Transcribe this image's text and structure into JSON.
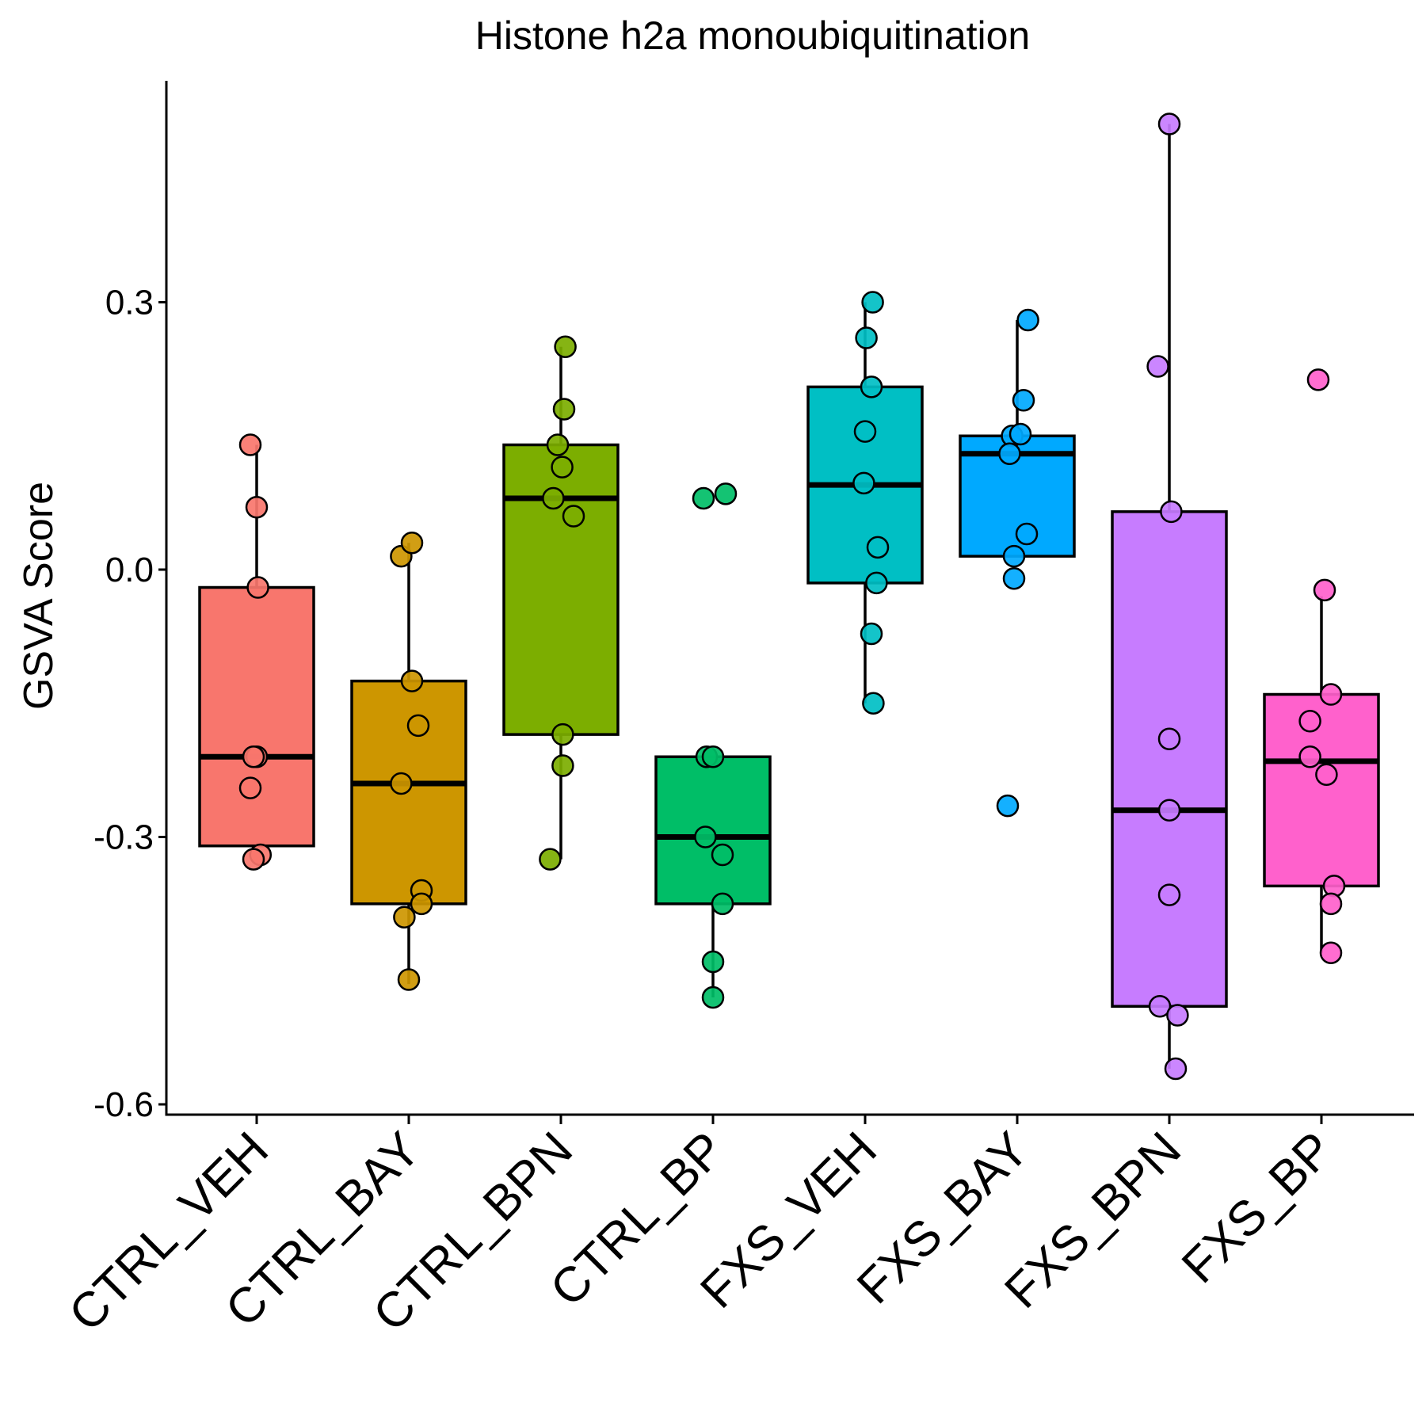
{
  "chart_data": {
    "type": "box",
    "title": "Histone h2a monoubiquitination",
    "xlabel": "",
    "ylabel": "GSVA Score",
    "ylim": [
      -0.62,
      0.55
    ],
    "yticks": [
      0.3,
      0.0,
      -0.3,
      -0.6
    ],
    "ytick_labels": [
      "0.3",
      "0.0",
      "-0.3",
      "-0.6"
    ],
    "grid": false,
    "legend": "none",
    "categories": [
      "CTRL_VEH",
      "CTRL_BAY",
      "CTRL_BPN",
      "CTRL_BP",
      "FXS_VEH",
      "FXS_BAY",
      "FXS_BPN",
      "FXS_BP"
    ],
    "colors": [
      "#F8766D",
      "#CD9600",
      "#7CAE00",
      "#00BE67",
      "#00BFC4",
      "#00A9FF",
      "#C77CFF",
      "#FF61CC"
    ],
    "boxes": [
      {
        "q1": -0.31,
        "median": -0.21,
        "q3": -0.02,
        "whisker_low": -0.31,
        "whisker_high": 0.14
      },
      {
        "q1": -0.375,
        "median": -0.24,
        "q3": -0.125,
        "whisker_low": -0.465,
        "whisker_high": 0.03
      },
      {
        "q1": -0.185,
        "median": 0.08,
        "q3": 0.14,
        "whisker_low": -0.325,
        "whisker_high": 0.25
      },
      {
        "q1": -0.375,
        "median": -0.3,
        "q3": -0.21,
        "whisker_low": -0.48,
        "whisker_high": -0.21
      },
      {
        "q1": -0.015,
        "median": 0.095,
        "q3": 0.205,
        "whisker_low": -0.15,
        "whisker_high": 0.3
      },
      {
        "q1": 0.015,
        "median": 0.13,
        "q3": 0.15,
        "whisker_low": 0.015,
        "whisker_high": 0.28
      },
      {
        "q1": -0.49,
        "median": -0.27,
        "q3": 0.065,
        "whisker_low": -0.56,
        "whisker_high": 0.5
      },
      {
        "q1": -0.355,
        "median": -0.215,
        "q3": -0.14,
        "whisker_low": -0.43,
        "whisker_high": -0.03
      }
    ],
    "points": [
      [
        [
          0.0,
          0.07
        ],
        [
          -0.1,
          0.14
        ],
        [
          0.02,
          -0.02
        ],
        [
          0.0,
          -0.21
        ],
        [
          -0.05,
          -0.21
        ],
        [
          -0.1,
          -0.245
        ],
        [
          0.06,
          -0.32
        ],
        [
          -0.05,
          -0.325
        ]
      ],
      [
        [
          -0.12,
          0.015
        ],
        [
          0.05,
          0.03
        ],
        [
          0.05,
          -0.125
        ],
        [
          0.15,
          -0.175
        ],
        [
          -0.12,
          -0.24
        ],
        [
          0.2,
          -0.36
        ],
        [
          0.2,
          -0.375
        ],
        [
          -0.07,
          -0.39
        ],
        [
          0.0,
          -0.46
        ]
      ],
      [
        [
          0.07,
          0.25
        ],
        [
          0.05,
          0.18
        ],
        [
          -0.05,
          0.14
        ],
        [
          0.02,
          0.115
        ],
        [
          -0.12,
          0.08
        ],
        [
          0.2,
          0.06
        ],
        [
          0.03,
          -0.185
        ],
        [
          0.03,
          -0.22
        ],
        [
          -0.17,
          -0.325
        ]
      ],
      [
        [
          -0.15,
          0.08
        ],
        [
          0.2,
          0.085
        ],
        [
          -0.1,
          -0.21
        ],
        [
          0.0,
          -0.21
        ],
        [
          -0.12,
          -0.3
        ],
        [
          0.15,
          -0.32
        ],
        [
          0.15,
          -0.375
        ],
        [
          0.0,
          -0.44
        ],
        [
          0.0,
          -0.48
        ]
      ],
      [
        [
          0.12,
          0.3
        ],
        [
          0.02,
          0.26
        ],
        [
          0.1,
          0.205
        ],
        [
          0.0,
          0.155
        ],
        [
          -0.02,
          0.097
        ],
        [
          0.2,
          0.025
        ],
        [
          0.18,
          -0.015
        ],
        [
          0.1,
          -0.072
        ],
        [
          0.13,
          -0.15
        ]
      ],
      [
        [
          0.17,
          0.28
        ],
        [
          0.1,
          0.19
        ],
        [
          -0.08,
          0.15
        ],
        [
          0.05,
          0.152
        ],
        [
          -0.12,
          0.13
        ],
        [
          0.15,
          0.04
        ],
        [
          -0.05,
          0.015
        ],
        [
          -0.05,
          -0.01
        ],
        [
          -0.15,
          -0.265
        ]
      ],
      [
        [
          0.0,
          0.5
        ],
        [
          -0.18,
          0.228
        ],
        [
          0.03,
          0.065
        ],
        [
          0.0,
          -0.19
        ],
        [
          0.0,
          -0.27
        ],
        [
          0.0,
          -0.365
        ],
        [
          -0.15,
          -0.49
        ],
        [
          0.13,
          -0.5
        ],
        [
          0.1,
          -0.56
        ]
      ],
      [
        [
          -0.05,
          0.213
        ],
        [
          0.05,
          -0.023
        ],
        [
          0.15,
          -0.14
        ],
        [
          -0.18,
          -0.17
        ],
        [
          -0.18,
          -0.21
        ],
        [
          0.08,
          -0.23
        ],
        [
          0.2,
          -0.355
        ],
        [
          0.15,
          -0.375
        ],
        [
          0.15,
          -0.43
        ]
      ]
    ]
  }
}
